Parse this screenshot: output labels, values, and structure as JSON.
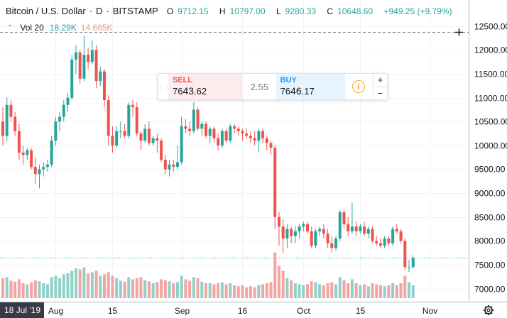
{
  "header": {
    "symbol": "Bitcoin / U.S. Dollar",
    "interval": "D",
    "exchange": "BITSTAMP",
    "open_label": "O",
    "open": "9712.15",
    "high_label": "H",
    "high": "10797.00",
    "low_label": "L",
    "low": "9280.33",
    "close_label": "C",
    "close": "10648.60",
    "change": "+949.25 (+9.79%)"
  },
  "volume_legend": {
    "name": "Vol 20",
    "value1": "18.29K",
    "value2": "14.665K"
  },
  "trade_widget": {
    "sell_label": "SELL",
    "sell_price_small": "76",
    "sell_price_big": "43",
    "sell_price_tail": ".62",
    "spread": "2.55",
    "buy_label": "BUY",
    "buy_price_small": "76",
    "buy_price_big": "46",
    "buy_price_tail": ".17",
    "info_symbol": "i",
    "plus": "+",
    "minus": "−"
  },
  "crosshair_price": "12373.01",
  "last_price_label": "7644.20",
  "crosshair_date": "18 Jul '19",
  "colors": {
    "up": "#26a69a",
    "down": "#ef5350",
    "vol_up": "#8fd1c9",
    "vol_down": "#f3a5a3",
    "grid": "#f0f3fa",
    "axis_text": "#131722"
  },
  "chart_data": {
    "type": "candlestick",
    "y_ticks": [
      7000,
      7500,
      8000,
      8500,
      9000,
      9500,
      10000,
      10500,
      11000,
      11500,
      12000,
      12500
    ],
    "y_tick_labels": [
      "7000.00",
      "7500.00",
      "8000.00",
      "8500.00",
      "9000.00",
      "9500.00",
      "10000.00",
      "10500.00",
      "11000.00",
      "11500.00",
      "12000.00",
      "12500.00"
    ],
    "ylim": [
      6800,
      12750
    ],
    "x_ticks": [
      {
        "label": "Aug",
        "index": 13
      },
      {
        "label": "15",
        "index": 27
      },
      {
        "label": "Sep",
        "index": 44
      },
      {
        "label": "16",
        "index": 59
      },
      {
        "label": "Oct",
        "index": 74
      },
      {
        "label": "15",
        "index": 88
      },
      {
        "label": "Nov",
        "index": 105
      }
    ],
    "candles": [
      {
        "o": 10500,
        "h": 10800,
        "l": 10000,
        "c": 10200,
        "v": 0.4
      },
      {
        "o": 10200,
        "h": 11000,
        "l": 10100,
        "c": 10850,
        "v": 0.42
      },
      {
        "o": 10850,
        "h": 10950,
        "l": 10500,
        "c": 10600,
        "v": 0.35
      },
      {
        "o": 10600,
        "h": 10700,
        "l": 10200,
        "c": 10300,
        "v": 0.33
      },
      {
        "o": 10300,
        "h": 10450,
        "l": 9700,
        "c": 9850,
        "v": 0.38
      },
      {
        "o": 9850,
        "h": 10000,
        "l": 9600,
        "c": 9800,
        "v": 0.3
      },
      {
        "o": 9800,
        "h": 9950,
        "l": 9700,
        "c": 9900,
        "v": 0.28
      },
      {
        "o": 9900,
        "h": 9950,
        "l": 9500,
        "c": 9550,
        "v": 0.32
      },
      {
        "o": 9550,
        "h": 9750,
        "l": 9200,
        "c": 9400,
        "v": 0.36
      },
      {
        "o": 9400,
        "h": 9600,
        "l": 9100,
        "c": 9500,
        "v": 0.34
      },
      {
        "o": 9500,
        "h": 9650,
        "l": 9350,
        "c": 9550,
        "v": 0.3
      },
      {
        "o": 9550,
        "h": 9700,
        "l": 9450,
        "c": 9600,
        "v": 0.28
      },
      {
        "o": 9600,
        "h": 10200,
        "l": 9550,
        "c": 10100,
        "v": 0.42
      },
      {
        "o": 10100,
        "h": 10600,
        "l": 10000,
        "c": 10500,
        "v": 0.45
      },
      {
        "o": 10500,
        "h": 10700,
        "l": 10300,
        "c": 10600,
        "v": 0.4
      },
      {
        "o": 10600,
        "h": 10950,
        "l": 10500,
        "c": 10850,
        "v": 0.48
      },
      {
        "o": 10850,
        "h": 11100,
        "l": 10700,
        "c": 11000,
        "v": 0.5
      },
      {
        "o": 11000,
        "h": 11900,
        "l": 10950,
        "c": 11800,
        "v": 0.55
      },
      {
        "o": 11800,
        "h": 12100,
        "l": 11500,
        "c": 11950,
        "v": 0.6
      },
      {
        "o": 11950,
        "h": 12000,
        "l": 11300,
        "c": 11400,
        "v": 0.58
      },
      {
        "o": 11400,
        "h": 12300,
        "l": 11350,
        "c": 11900,
        "v": 0.62
      },
      {
        "o": 11900,
        "h": 12050,
        "l": 11600,
        "c": 11750,
        "v": 0.5
      },
      {
        "o": 11750,
        "h": 12200,
        "l": 11700,
        "c": 12000,
        "v": 0.52
      },
      {
        "o": 12000,
        "h": 12100,
        "l": 11200,
        "c": 11350,
        "v": 0.55
      },
      {
        "o": 11350,
        "h": 11650,
        "l": 11250,
        "c": 11550,
        "v": 0.45
      },
      {
        "o": 11550,
        "h": 11600,
        "l": 10800,
        "c": 10950,
        "v": 0.48
      },
      {
        "o": 10950,
        "h": 11050,
        "l": 10000,
        "c": 10200,
        "v": 0.52
      },
      {
        "o": 10200,
        "h": 10400,
        "l": 9850,
        "c": 10000,
        "v": 0.45
      },
      {
        "o": 10000,
        "h": 10400,
        "l": 9950,
        "c": 10300,
        "v": 0.4
      },
      {
        "o": 10300,
        "h": 10500,
        "l": 10150,
        "c": 10300,
        "v": 0.35
      },
      {
        "o": 10300,
        "h": 10450,
        "l": 10150,
        "c": 10200,
        "v": 0.33
      },
      {
        "o": 10200,
        "h": 10900,
        "l": 10150,
        "c": 10850,
        "v": 0.42
      },
      {
        "o": 10850,
        "h": 10950,
        "l": 10600,
        "c": 10800,
        "v": 0.38
      },
      {
        "o": 10800,
        "h": 10900,
        "l": 10200,
        "c": 10250,
        "v": 0.4
      },
      {
        "o": 10250,
        "h": 10300,
        "l": 9900,
        "c": 10100,
        "v": 0.42
      },
      {
        "o": 10100,
        "h": 10450,
        "l": 10050,
        "c": 10350,
        "v": 0.36
      },
      {
        "o": 10350,
        "h": 10500,
        "l": 10000,
        "c": 10050,
        "v": 0.34
      },
      {
        "o": 10050,
        "h": 10200,
        "l": 10000,
        "c": 10150,
        "v": 0.3
      },
      {
        "o": 10150,
        "h": 10250,
        "l": 9850,
        "c": 10100,
        "v": 0.32
      },
      {
        "o": 10100,
        "h": 10150,
        "l": 9650,
        "c": 9700,
        "v": 0.38
      },
      {
        "o": 9700,
        "h": 9800,
        "l": 9400,
        "c": 9500,
        "v": 0.36
      },
      {
        "o": 9500,
        "h": 9700,
        "l": 9350,
        "c": 9600,
        "v": 0.34
      },
      {
        "o": 9600,
        "h": 9700,
        "l": 9450,
        "c": 9550,
        "v": 0.3
      },
      {
        "o": 9550,
        "h": 10000,
        "l": 9500,
        "c": 9650,
        "v": 0.32
      },
      {
        "o": 9650,
        "h": 10600,
        "l": 9600,
        "c": 10400,
        "v": 0.45
      },
      {
        "o": 10400,
        "h": 10550,
        "l": 10250,
        "c": 10350,
        "v": 0.38
      },
      {
        "o": 10350,
        "h": 10500,
        "l": 10200,
        "c": 10300,
        "v": 0.35
      },
      {
        "o": 10300,
        "h": 10900,
        "l": 10250,
        "c": 10750,
        "v": 0.42
      },
      {
        "o": 10750,
        "h": 10800,
        "l": 10300,
        "c": 10350,
        "v": 0.4
      },
      {
        "o": 10350,
        "h": 10500,
        "l": 10200,
        "c": 10450,
        "v": 0.33
      },
      {
        "o": 10450,
        "h": 10500,
        "l": 10150,
        "c": 10200,
        "v": 0.3
      },
      {
        "o": 10200,
        "h": 10400,
        "l": 10050,
        "c": 10350,
        "v": 0.3
      },
      {
        "o": 10350,
        "h": 10400,
        "l": 10050,
        "c": 10150,
        "v": 0.28
      },
      {
        "o": 10150,
        "h": 10250,
        "l": 9900,
        "c": 10000,
        "v": 0.3
      },
      {
        "o": 10000,
        "h": 10350,
        "l": 9950,
        "c": 10300,
        "v": 0.32
      },
      {
        "o": 10300,
        "h": 10350,
        "l": 10050,
        "c": 10100,
        "v": 0.28
      },
      {
        "o": 10100,
        "h": 10450,
        "l": 10050,
        "c": 10400,
        "v": 0.3
      },
      {
        "o": 10400,
        "h": 10450,
        "l": 10250,
        "c": 10350,
        "v": 0.26
      },
      {
        "o": 10350,
        "h": 10400,
        "l": 10200,
        "c": 10300,
        "v": 0.24
      },
      {
        "o": 10300,
        "h": 10350,
        "l": 10100,
        "c": 10250,
        "v": 0.26
      },
      {
        "o": 10250,
        "h": 10350,
        "l": 10150,
        "c": 10200,
        "v": 0.22
      },
      {
        "o": 10200,
        "h": 10300,
        "l": 10050,
        "c": 10150,
        "v": 0.24
      },
      {
        "o": 10150,
        "h": 10300,
        "l": 10000,
        "c": 10100,
        "v": 0.22
      },
      {
        "o": 10100,
        "h": 10350,
        "l": 9850,
        "c": 10300,
        "v": 0.26
      },
      {
        "o": 10300,
        "h": 10350,
        "l": 10050,
        "c": 10150,
        "v": 0.28
      },
      {
        "o": 10150,
        "h": 10200,
        "l": 9900,
        "c": 10050,
        "v": 0.3
      },
      {
        "o": 10050,
        "h": 10100,
        "l": 9800,
        "c": 9950,
        "v": 0.32
      },
      {
        "o": 9950,
        "h": 10000,
        "l": 8250,
        "c": 8500,
        "v": 0.92
      },
      {
        "o": 8500,
        "h": 8600,
        "l": 7900,
        "c": 8300,
        "v": 0.65
      },
      {
        "o": 8300,
        "h": 8450,
        "l": 7750,
        "c": 8050,
        "v": 0.55
      },
      {
        "o": 8050,
        "h": 8350,
        "l": 7850,
        "c": 8250,
        "v": 0.4
      },
      {
        "o": 8250,
        "h": 8300,
        "l": 7950,
        "c": 8100,
        "v": 0.36
      },
      {
        "o": 8100,
        "h": 8300,
        "l": 7950,
        "c": 8200,
        "v": 0.3
      },
      {
        "o": 8200,
        "h": 8350,
        "l": 8050,
        "c": 8300,
        "v": 0.28
      },
      {
        "o": 8300,
        "h": 8400,
        "l": 8200,
        "c": 8350,
        "v": 0.26
      },
      {
        "o": 8350,
        "h": 8400,
        "l": 8150,
        "c": 8200,
        "v": 0.28
      },
      {
        "o": 8200,
        "h": 8300,
        "l": 7850,
        "c": 7900,
        "v": 0.34
      },
      {
        "o": 7900,
        "h": 8250,
        "l": 7850,
        "c": 8200,
        "v": 0.32
      },
      {
        "o": 8200,
        "h": 8300,
        "l": 8100,
        "c": 8250,
        "v": 0.28
      },
      {
        "o": 8250,
        "h": 8350,
        "l": 8050,
        "c": 8150,
        "v": 0.26
      },
      {
        "o": 8150,
        "h": 8250,
        "l": 7850,
        "c": 7950,
        "v": 0.3
      },
      {
        "o": 7950,
        "h": 8100,
        "l": 7750,
        "c": 7850,
        "v": 0.32
      },
      {
        "o": 7850,
        "h": 8100,
        "l": 7800,
        "c": 8050,
        "v": 0.28
      },
      {
        "o": 8050,
        "h": 8650,
        "l": 8000,
        "c": 8600,
        "v": 0.42
      },
      {
        "o": 8600,
        "h": 8650,
        "l": 8250,
        "c": 8350,
        "v": 0.36
      },
      {
        "o": 8350,
        "h": 8500,
        "l": 8100,
        "c": 8200,
        "v": 0.3
      },
      {
        "o": 8200,
        "h": 8800,
        "l": 8150,
        "c": 8300,
        "v": 0.38
      },
      {
        "o": 8300,
        "h": 8400,
        "l": 8100,
        "c": 8200,
        "v": 0.3
      },
      {
        "o": 8200,
        "h": 8350,
        "l": 8150,
        "c": 8300,
        "v": 0.26
      },
      {
        "o": 8300,
        "h": 8400,
        "l": 8100,
        "c": 8150,
        "v": 0.28
      },
      {
        "o": 8150,
        "h": 8300,
        "l": 8050,
        "c": 8250,
        "v": 0.24
      },
      {
        "o": 8250,
        "h": 8300,
        "l": 7950,
        "c": 8000,
        "v": 0.3
      },
      {
        "o": 8000,
        "h": 8100,
        "l": 7900,
        "c": 7950,
        "v": 0.28
      },
      {
        "o": 7950,
        "h": 8050,
        "l": 7850,
        "c": 7900,
        "v": 0.26
      },
      {
        "o": 7900,
        "h": 8100,
        "l": 7850,
        "c": 8050,
        "v": 0.24
      },
      {
        "o": 8050,
        "h": 8100,
        "l": 7900,
        "c": 7950,
        "v": 0.26
      },
      {
        "o": 7950,
        "h": 8300,
        "l": 7900,
        "c": 8250,
        "v": 0.3
      },
      {
        "o": 8250,
        "h": 8350,
        "l": 8150,
        "c": 8200,
        "v": 0.26
      },
      {
        "o": 8200,
        "h": 8250,
        "l": 7950,
        "c": 8000,
        "v": 0.3
      },
      {
        "o": 8000,
        "h": 8050,
        "l": 7400,
        "c": 7450,
        "v": 0.45
      },
      {
        "o": 7450,
        "h": 7600,
        "l": 7350,
        "c": 7450,
        "v": 0.32
      },
      {
        "o": 7450,
        "h": 7700,
        "l": 7420,
        "c": 7644,
        "v": 0.26
      }
    ]
  }
}
